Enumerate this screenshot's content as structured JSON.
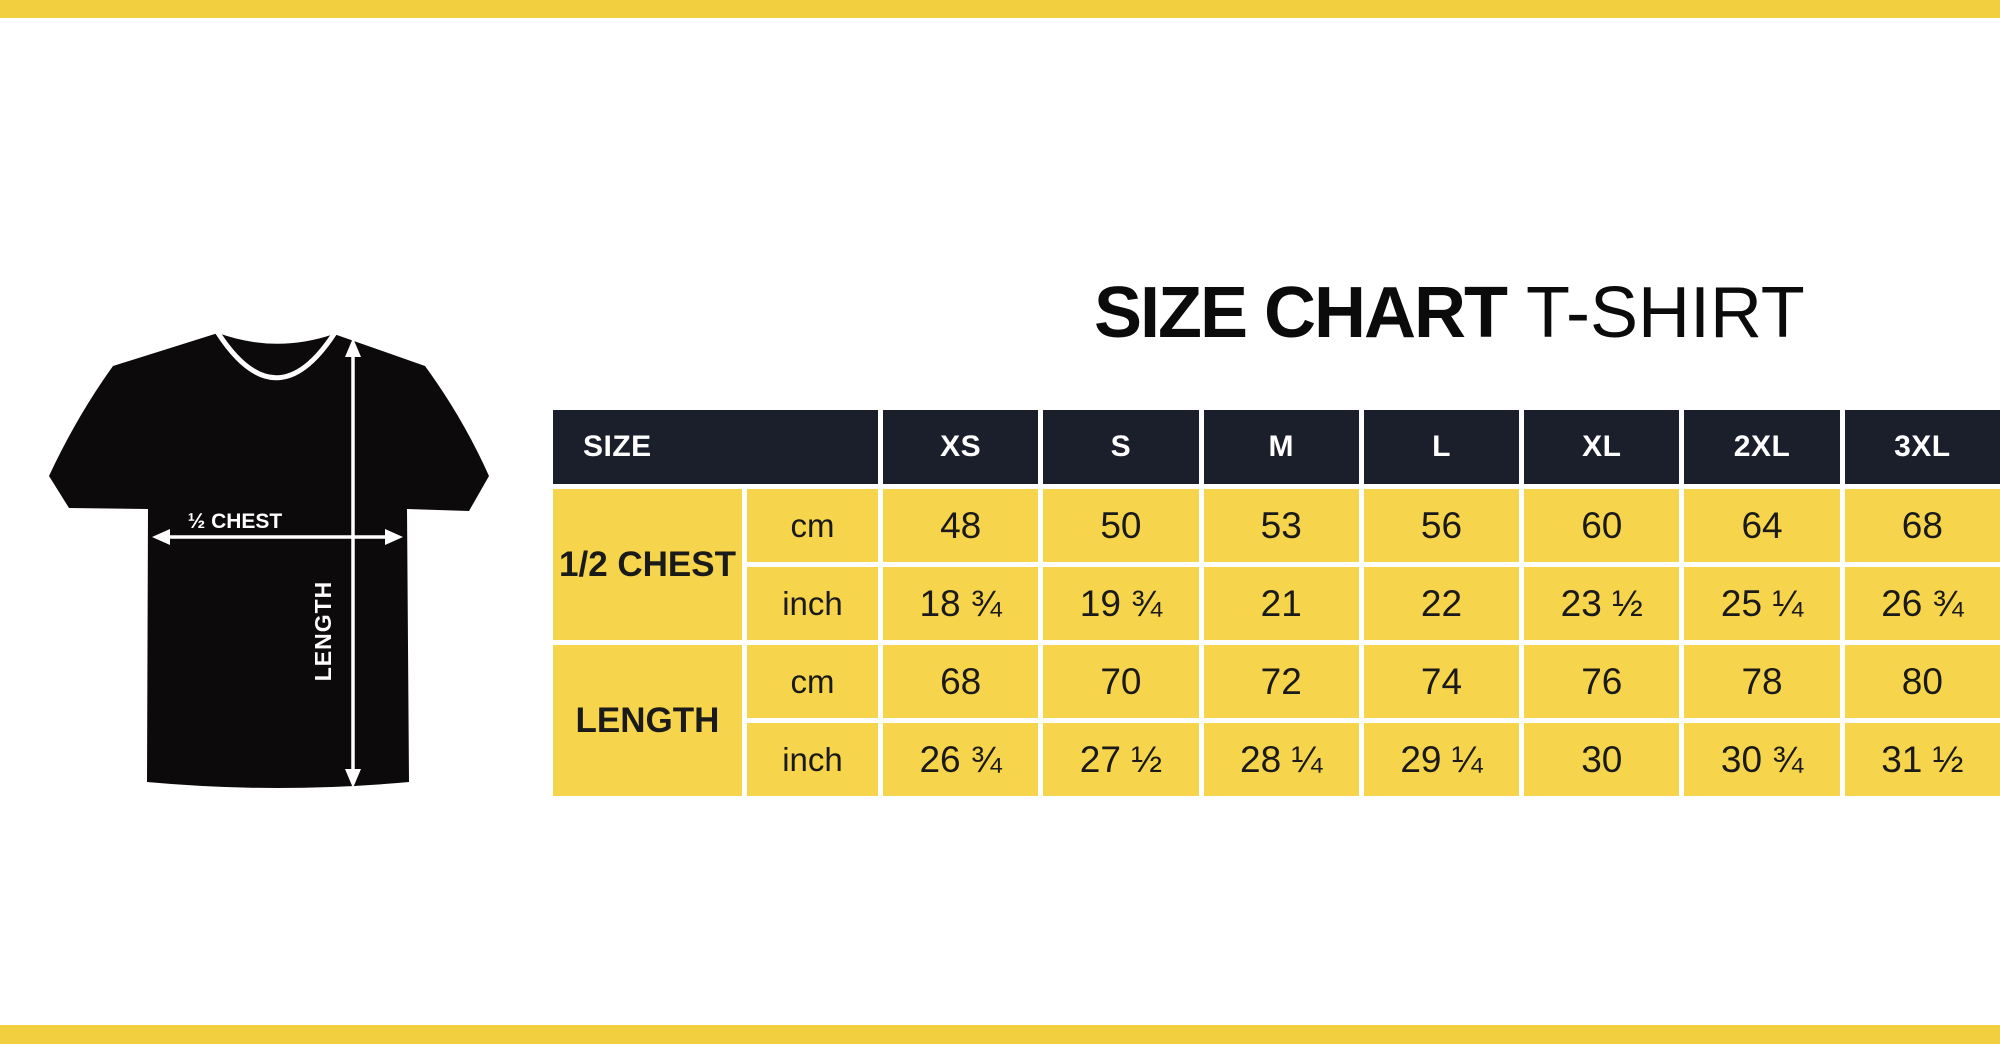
{
  "title": {
    "bold": "SIZE CHART",
    "light": "T-SHIRT"
  },
  "colors": {
    "bar_yellow": "#F2CF3F",
    "cell_yellow": "#F6D44B",
    "header_navy": "#1A1F2B",
    "shirt_black": "#0D0A0C",
    "text_dark": "#1A1A1A"
  },
  "shirt_diagram": {
    "half_chest_label": "½ CHEST",
    "length_label": "LENGTH"
  },
  "chart_data": {
    "type": "table",
    "title": "SIZE CHART T-SHIRT",
    "corner_header": "SIZE",
    "size_columns": [
      "XS",
      "S",
      "M",
      "L",
      "XL",
      "2XL",
      "3XL"
    ],
    "row_groups": [
      {
        "measure": "1/2 CHEST",
        "rows": [
          {
            "unit": "cm",
            "values": [
              "48",
              "50",
              "53",
              "56",
              "60",
              "64",
              "68"
            ]
          },
          {
            "unit": "inch",
            "values": [
              "18 ¾",
              "19 ¾",
              "21",
              "22",
              "23 ½",
              "25 ¼",
              "26 ¾"
            ]
          }
        ]
      },
      {
        "measure": "LENGTH",
        "rows": [
          {
            "unit": "cm",
            "values": [
              "68",
              "70",
              "72",
              "74",
              "76",
              "78",
              "80"
            ]
          },
          {
            "unit": "inch",
            "values": [
              "26 ¾",
              "27 ½",
              "28 ¼",
              "29 ¼",
              "30",
              "30 ¾",
              "31 ½"
            ]
          }
        ]
      }
    ]
  }
}
